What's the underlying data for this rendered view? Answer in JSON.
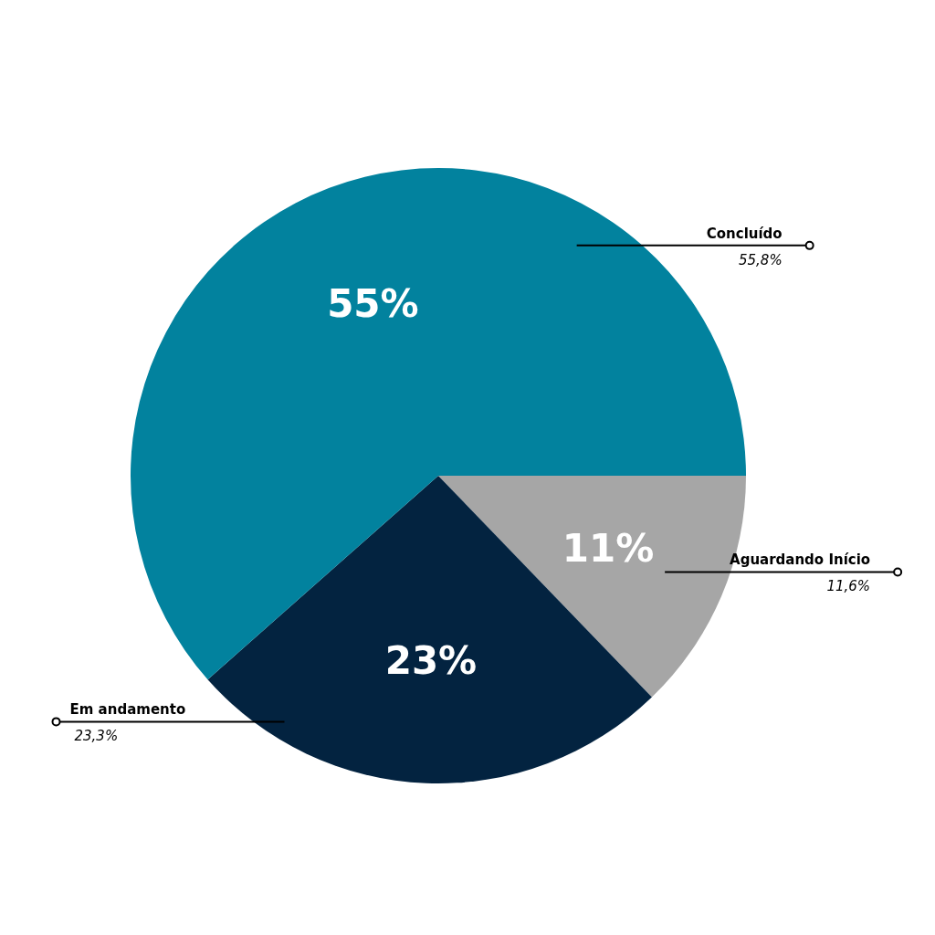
{
  "chart_data": {
    "type": "pie",
    "categories": [
      "Aguardando Início",
      "Em andamento",
      "Concluído"
    ],
    "values": [
      11.6,
      23.3,
      55.8
    ],
    "colors": [
      "#a6a6a6",
      "#032340",
      "#02829e"
    ],
    "value_labels": [
      "11,6%",
      "23,3%",
      "55,8%"
    ],
    "annotations": [
      {
        "text": "11%",
        "x": "Aguardando Início"
      },
      {
        "text": "23%",
        "x": "Em andamento"
      },
      {
        "text": "55%",
        "x": "Concluído"
      }
    ]
  }
}
